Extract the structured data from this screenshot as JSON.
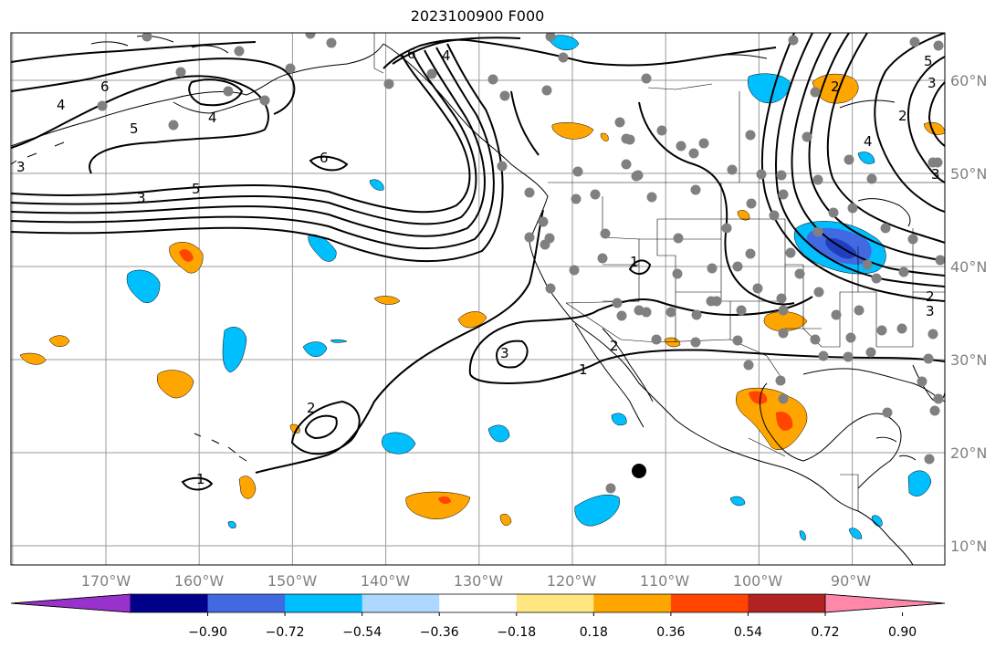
{
  "title": "2023100900 F000",
  "lon_labels": [
    "170°W",
    "160°W",
    "150°W",
    "140°W",
    "130°W",
    "120°W",
    "110°W",
    "100°W",
    "90°W"
  ],
  "lat_labels": [
    "60°N",
    "50°N",
    "40°N",
    "30°N",
    "20°N",
    "10°N"
  ],
  "colorbar": {
    "colors": [
      "#9932cc",
      "#00008b",
      "#4169e1",
      "#00bfff",
      "#add8ff",
      "#ffffff",
      "#ffe680",
      "#ffa500",
      "#ff4500",
      "#b22222",
      "#ff88aa"
    ],
    "tick_labels": [
      "−0.90",
      "−0.72",
      "−0.54",
      "−0.36",
      "−0.18",
      "0.18",
      "0.36",
      "0.54",
      "0.72",
      "0.90"
    ]
  },
  "contour_labels": [
    "6",
    "4",
    "5",
    "4",
    "3",
    "3",
    "5",
    "6",
    "6",
    "4",
    "1",
    "2",
    "3",
    "1",
    "2",
    "1",
    "2",
    "3",
    "4",
    "5",
    "3",
    "2",
    "3",
    "2"
  ],
  "colors": {
    "positive_orange": "#ffa500",
    "positive_red": "#ff4500",
    "negative_blue": "#00bfff",
    "station_dot": "#808080"
  }
}
